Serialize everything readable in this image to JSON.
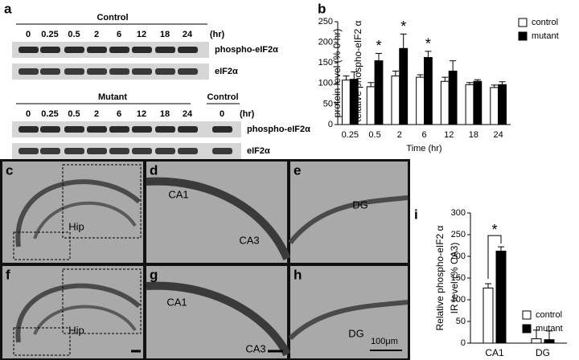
{
  "blots": {
    "header": "Control",
    "hours": [
      "0",
      "0.25",
      "0.5",
      "2",
      "6",
      "12",
      "18",
      "24"
    ],
    "unit": "(hr)",
    "bands": [
      "phospho-eIF2α",
      "eIF2α"
    ],
    "letter": "a"
  },
  "blots_mutant": {
    "header": "Mutant",
    "extra_header": "Control",
    "hours": [
      "0",
      "0.25",
      "0.5",
      "2",
      "6",
      "12",
      "18",
      "24",
      "0"
    ],
    "unit": "(hr)",
    "bands": [
      "phospho-eIF2α",
      "eIF2α"
    ]
  },
  "micrographs": {
    "panels": [
      {
        "letter": "c",
        "labels": [
          "Hip"
        ]
      },
      {
        "letter": "d",
        "labels": [
          "CA1",
          "CA3"
        ]
      },
      {
        "letter": "e",
        "labels": [
          "DG"
        ]
      },
      {
        "letter": "f",
        "labels": [
          "Hip"
        ]
      },
      {
        "letter": "g",
        "labels": [
          "CA1",
          "CA3"
        ]
      },
      {
        "letter": "h",
        "labels": [
          "DG"
        ]
      }
    ],
    "scale": "100μm"
  },
  "chart_data": [
    {
      "type": "bar",
      "letter": "b",
      "ylabel": [
        "Relative phospho-eIF2 α",
        "protein level (% 0 hr)"
      ],
      "xlabel": "Time (hr)",
      "categories": [
        "0.25",
        "0.5",
        "2",
        "6",
        "12",
        "18",
        "24"
      ],
      "series": [
        {
          "name": "control",
          "color": "#ffffff",
          "values": [
            108,
            92,
            118,
            115,
            105,
            97,
            90
          ],
          "errors": [
            10,
            10,
            12,
            6,
            10,
            5,
            6
          ]
        },
        {
          "name": "mutant",
          "color": "#000000",
          "values": [
            110,
            155,
            185,
            163,
            130,
            105,
            97
          ],
          "errors": [
            18,
            18,
            35,
            15,
            25,
            4,
            7
          ]
        }
      ],
      "significance": [
        null,
        "*",
        "*",
        "*",
        null,
        null,
        null
      ],
      "bracket": false,
      "ylim": [
        0,
        250
      ],
      "yticks": [
        0,
        50,
        100,
        150,
        200,
        250
      ]
    },
    {
      "type": "bar",
      "letter": "i",
      "ylabel": [
        "Relative phospho-eIF2 α",
        "IR level (% CA3)"
      ],
      "categories": [
        "CA1",
        "DG"
      ],
      "series": [
        {
          "name": "control",
          "color": "#ffffff",
          "values": [
            127,
            10
          ],
          "errors": [
            10,
            20
          ]
        },
        {
          "name": "mutant",
          "color": "#000000",
          "values": [
            212,
            8
          ],
          "errors": [
            10,
            20
          ]
        }
      ],
      "significance": [
        "*",
        null
      ],
      "bracket": true,
      "ylim": [
        0,
        300
      ],
      "yticks": [
        0,
        50,
        100,
        150,
        200,
        250,
        300
      ]
    }
  ]
}
